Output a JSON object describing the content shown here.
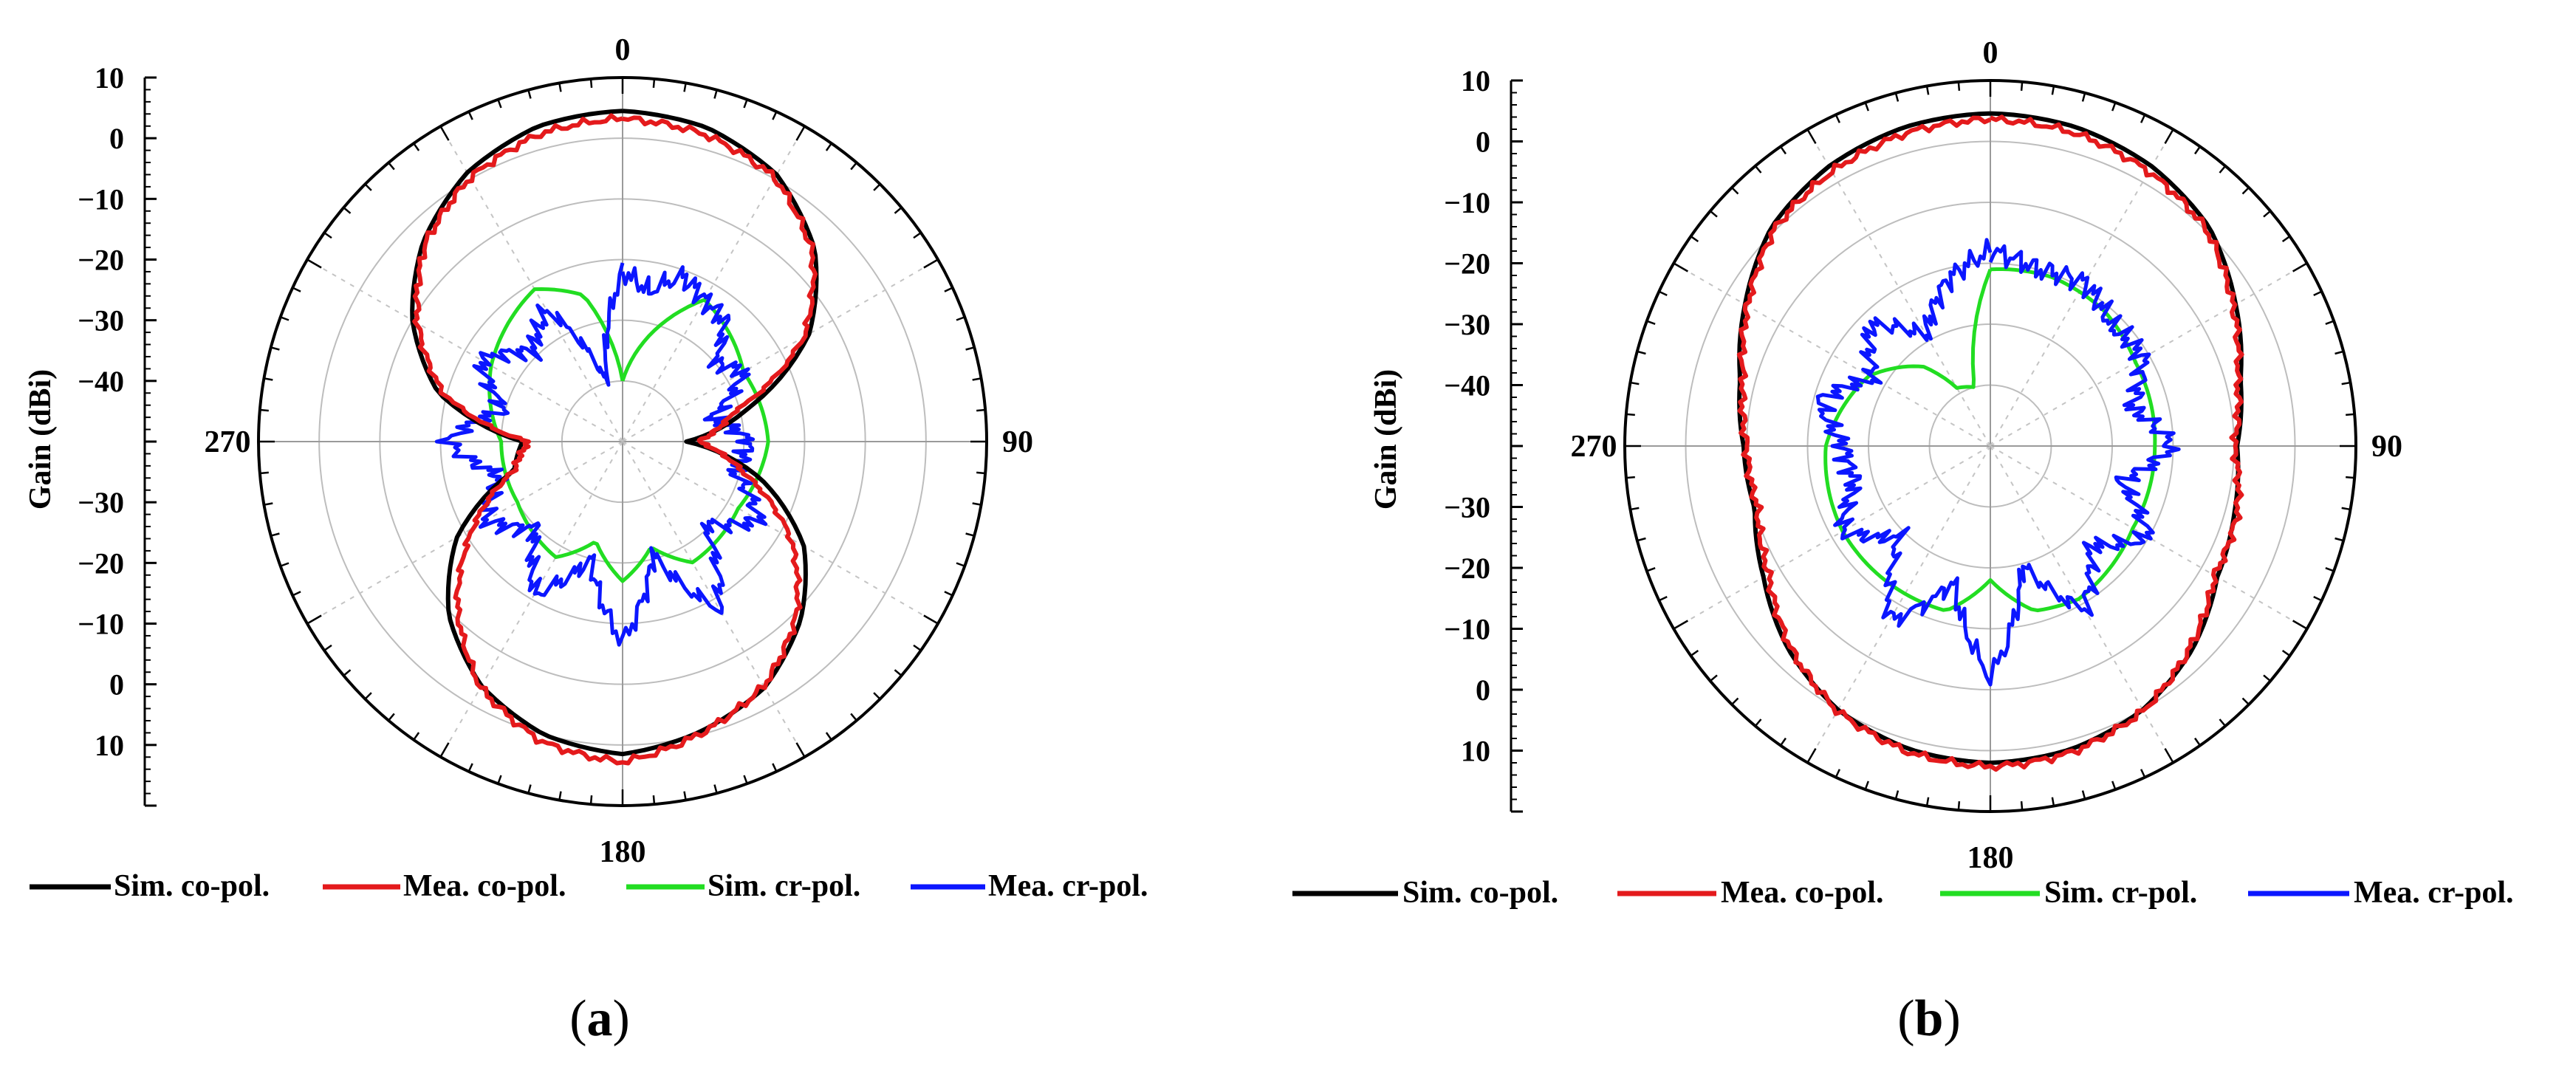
{
  "chart_data": [
    {
      "type": "polar-line",
      "panel_label": "a",
      "ylabel": "Gain (dBi)",
      "radial_range": [
        -50,
        10
      ],
      "radial_ticks_upper": [
        "10",
        "0",
        "−10",
        "−20",
        "−30",
        "−40"
      ],
      "radial_ticks_lower": [
        "−30",
        "−20",
        "−10",
        "0",
        "10"
      ],
      "angle_labels": [
        "0",
        "90",
        "180",
        "270"
      ],
      "angular_grid_deg": 30,
      "grid": true,
      "legend_position": "bottom",
      "series": [
        {
          "name": "Sim. co-pol.",
          "color": "#000000",
          "angles": [
            0,
            15,
            30,
            45,
            60,
            75,
            90,
            105,
            120,
            135,
            150,
            165,
            180,
            195,
            210,
            225,
            240,
            255,
            270,
            285,
            300,
            315,
            330,
            345
          ],
          "values": [
            4.5,
            3.6,
            0.8,
            -5.2,
            -14.5,
            -28.5,
            -39.5,
            -26.5,
            -15.5,
            -8.5,
            -3.2,
            -0.5,
            1.5,
            0,
            -3.5,
            -9.5,
            -18.5,
            -31.5,
            -33.5,
            -18.5,
            -10,
            -3.5,
            1.2,
            3.8
          ]
        },
        {
          "name": "Mea. co-pol.",
          "color": "#e41a1c",
          "angles": [
            0,
            15,
            30,
            45,
            60,
            75,
            90,
            105,
            120,
            135,
            150,
            165,
            180,
            195,
            210,
            225,
            240,
            255,
            270,
            285,
            300,
            315,
            330,
            345
          ],
          "values": [
            3.2,
            2.4,
            0.2,
            -5.8,
            -15.5,
            -31,
            -37.5,
            -29,
            -18,
            -9.5,
            -3.5,
            -0.2,
            2.8,
            1.2,
            -3.2,
            -11.5,
            -21.5,
            -31.5,
            -34.5,
            -19.5,
            -11,
            -4,
            0.2,
            2.5
          ]
        },
        {
          "name": "Sim. cr-pol.",
          "color": "#22dd22",
          "angles": [
            0,
            30,
            60,
            90,
            120,
            150,
            165,
            180,
            195,
            210,
            240,
            270,
            300,
            330,
            345
          ],
          "values": [
            -40,
            -23,
            -27,
            -26,
            -28,
            -27,
            -32,
            -27,
            -33,
            -28,
            -30,
            -30,
            -25,
            -21,
            -25
          ]
        },
        {
          "name": "Mea. cr-pol.",
          "color": "#0b16ff",
          "angles": [
            0,
            10,
            20,
            30,
            40,
            50,
            60,
            75,
            90,
            105,
            120,
            135,
            150,
            165,
            180,
            195,
            210,
            225,
            240,
            255,
            270,
            285,
            300,
            315,
            330,
            345
          ],
          "values": [
            -22,
            -25,
            -21,
            -23,
            -24,
            -30,
            -27,
            -35,
            -29,
            -31,
            -24,
            -31,
            -18,
            -31,
            -17,
            -30,
            -21,
            -30,
            -24,
            -29,
            -21,
            -30,
            -23,
            -29,
            -25,
            -40
          ]
        }
      ]
    },
    {
      "type": "polar-line",
      "panel_label": "b",
      "ylabel": "Gain (dBi)",
      "radial_range": [
        -50,
        10
      ],
      "radial_ticks_upper": [
        "10",
        "0",
        "−10",
        "−20",
        "−30",
        "−40"
      ],
      "radial_ticks_lower": [
        "−30",
        "−20",
        "−10",
        "0",
        "10"
      ],
      "angle_labels": [
        "0",
        "90",
        "180",
        "270"
      ],
      "angular_grid_deg": 30,
      "grid": true,
      "legend_position": "bottom",
      "series": [
        {
          "name": "Sim. co-pol.",
          "color": "#000000",
          "angles": [
            0,
            15,
            30,
            45,
            60,
            75,
            90,
            105,
            120,
            135,
            150,
            165,
            180,
            195,
            210,
            225,
            240,
            255,
            270,
            285,
            300,
            315,
            330,
            345
          ],
          "values": [
            4.6,
            4.2,
            3,
            0.8,
            -3.5,
            -7.5,
            -9.5,
            -8.5,
            -7,
            -3,
            0,
            1.5,
            2,
            1.5,
            0,
            -3,
            -7,
            -10,
            -9.5,
            -7.5,
            -3.5,
            0.8,
            3,
            4.2
          ]
        },
        {
          "name": "Mea. co-pol.",
          "color": "#e41a1c",
          "angles": [
            0,
            15,
            30,
            45,
            60,
            75,
            90,
            105,
            120,
            135,
            150,
            165,
            180,
            195,
            210,
            225,
            240,
            255,
            270,
            285,
            300,
            315,
            330,
            345
          ],
          "values": [
            3.6,
            3.2,
            2,
            0.2,
            -4,
            -8,
            -10,
            -8,
            -7.5,
            -3.5,
            0.2,
            2,
            2.6,
            2,
            0.2,
            -3.5,
            -8,
            -10.5,
            -10,
            -8,
            -4,
            0.2,
            2,
            3.2
          ]
        },
        {
          "name": "Sim. cr-pol.",
          "color": "#22dd22",
          "angles": [
            0,
            20,
            40,
            60,
            90,
            120,
            150,
            165,
            180,
            195,
            210,
            240,
            270,
            300,
            320,
            330,
            345
          ],
          "values": [
            -21,
            -20.5,
            -21,
            -22.5,
            -23,
            -23,
            -21,
            -22,
            -28,
            -22,
            -22,
            -22,
            -23,
            -27,
            -33,
            -39,
            -40
          ]
        },
        {
          "name": "Mea. cr-pol.",
          "color": "#0b16ff",
          "angles": [
            0,
            15,
            30,
            45,
            60,
            75,
            90,
            105,
            120,
            135,
            150,
            165,
            180,
            195,
            210,
            225,
            240,
            255,
            270,
            285,
            300,
            315,
            330,
            345
          ],
          "values": [
            -18,
            -20,
            -19,
            -22,
            -21,
            -26,
            -20,
            -28,
            -20,
            -27,
            -19,
            -30,
            -12,
            -27,
            -17,
            -29,
            -22,
            -27,
            -26,
            -21,
            -28,
            -22,
            -29,
            -22
          ]
        }
      ]
    }
  ]
}
